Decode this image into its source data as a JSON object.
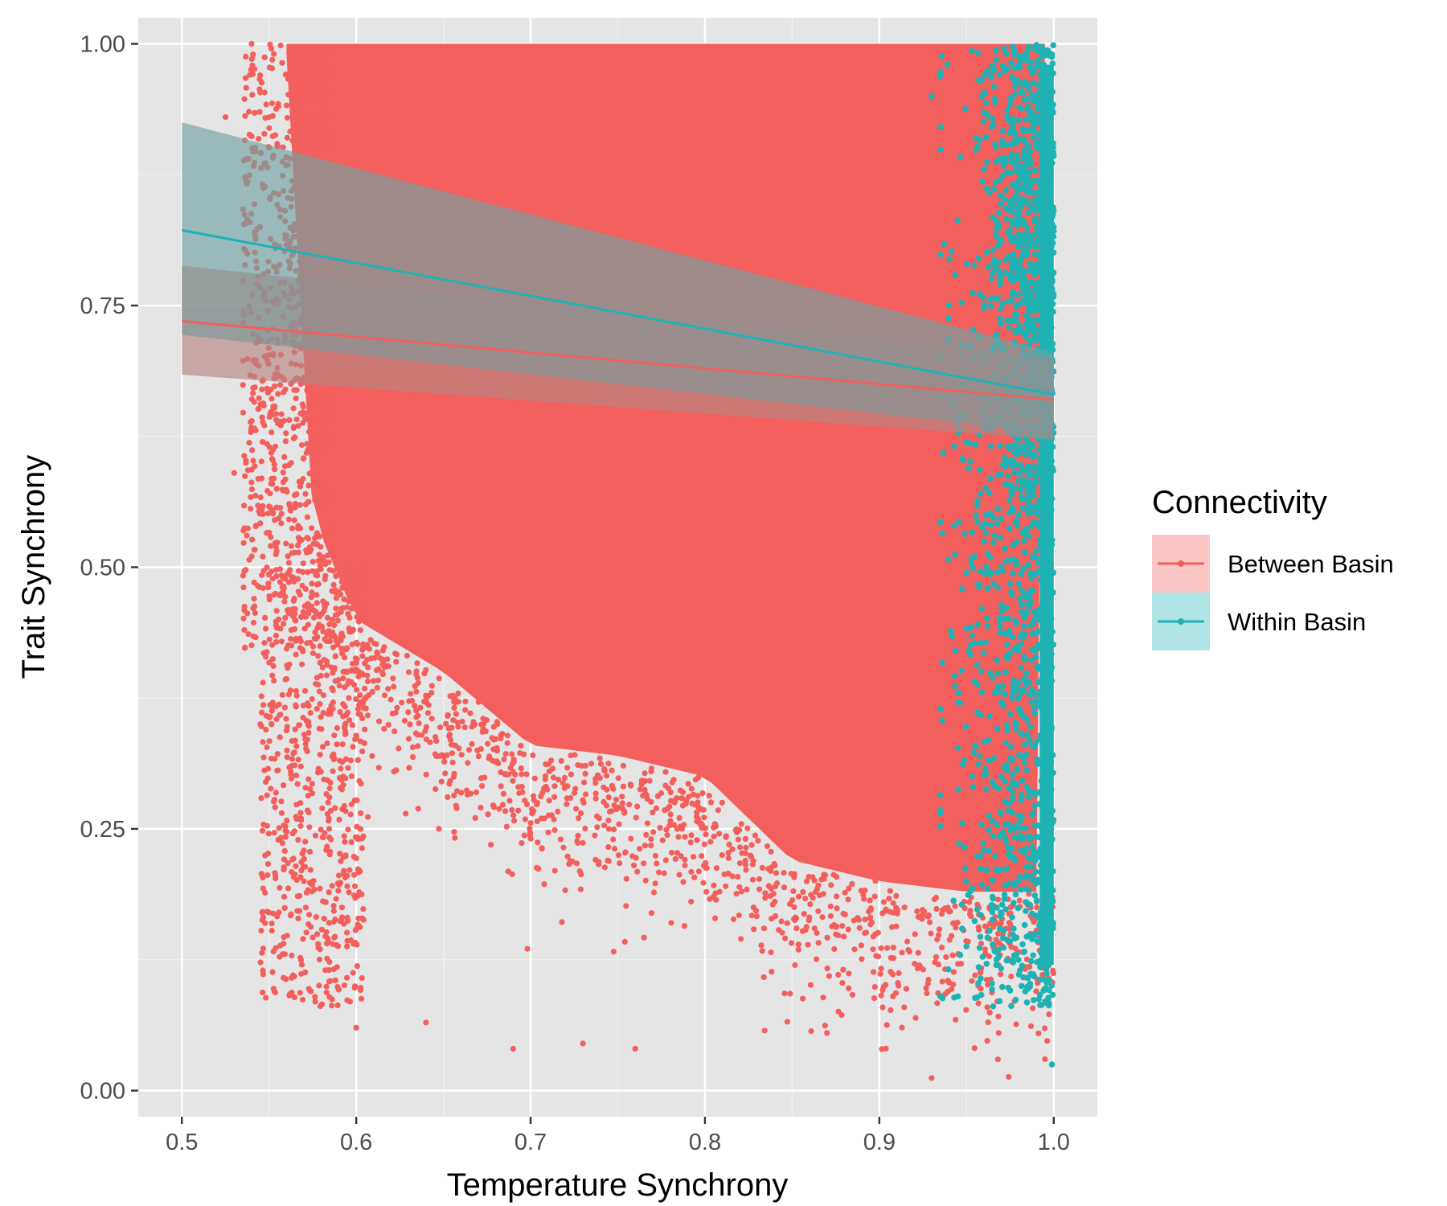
{
  "chart_data": {
    "type": "scatter",
    "title": "",
    "xlabel": "Temperature Synchrony",
    "ylabel": "Trait Synchrony",
    "xlim": [
      0.475,
      1.025
    ],
    "ylim": [
      -0.025,
      1.025
    ],
    "x_ticks": [
      0.5,
      0.6,
      0.7,
      0.8,
      0.9,
      1.0
    ],
    "x_tick_labels": [
      "0.5",
      "0.6",
      "0.7",
      "0.8",
      "0.9",
      "1.0"
    ],
    "y_ticks": [
      0.0,
      0.25,
      0.5,
      0.75,
      1.0
    ],
    "y_tick_labels": [
      "0.00",
      "0.25",
      "0.50",
      "0.75",
      "1.00"
    ],
    "grid": true,
    "legend": {
      "title": "Connectivity",
      "placement": "right"
    },
    "series": [
      {
        "name": "Between Basin",
        "color": "#F25F5C",
        "fill_alpha": 0.35,
        "trend_line": {
          "x": [
            0.5,
            1.0
          ],
          "y": [
            0.735,
            0.66
          ],
          "ci_lower": [
            0.684,
            0.622
          ],
          "ci_upper": [
            0.788,
            0.7
          ]
        },
        "points_sample": [
          {
            "x": 0.54,
            "y": 1.0
          },
          {
            "x": 0.55,
            "y": 0.93
          },
          {
            "x": 0.57,
            "y": 0.2
          },
          {
            "x": 0.6,
            "y": 0.06
          },
          {
            "x": 0.64,
            "y": 0.065
          },
          {
            "x": 0.69,
            "y": 0.04
          },
          {
            "x": 0.73,
            "y": 0.045
          },
          {
            "x": 0.76,
            "y": 0.04
          },
          {
            "x": 0.87,
            "y": 0.055
          },
          {
            "x": 0.93,
            "y": 0.012
          },
          {
            "x": 0.995,
            "y": 0.03
          },
          {
            "x": 0.525,
            "y": 0.93
          },
          {
            "x": 0.53,
            "y": 0.59
          },
          {
            "x": 0.545,
            "y": 0.35
          },
          {
            "x": 0.55,
            "y": 0.17
          }
        ]
      },
      {
        "name": "Within Basin",
        "color": "#1EB2B5",
        "fill_alpha": 0.35,
        "trend_line": {
          "x": [
            0.5,
            1.0
          ],
          "y": [
            0.822,
            0.665
          ],
          "ci_lower": [
            0.722,
            0.628
          ],
          "ci_upper": [
            0.925,
            0.705
          ]
        },
        "points_sample": [
          {
            "x": 0.999,
            "y": 0.025
          },
          {
            "x": 0.945,
            "y": 0.09
          },
          {
            "x": 0.93,
            "y": 0.95
          },
          {
            "x": 0.94,
            "y": 0.75
          },
          {
            "x": 0.97,
            "y": 0.3
          },
          {
            "x": 0.98,
            "y": 0.55
          },
          {
            "x": 0.96,
            "y": 0.88
          },
          {
            "x": 0.95,
            "y": 0.2
          }
        ]
      }
    ]
  }
}
